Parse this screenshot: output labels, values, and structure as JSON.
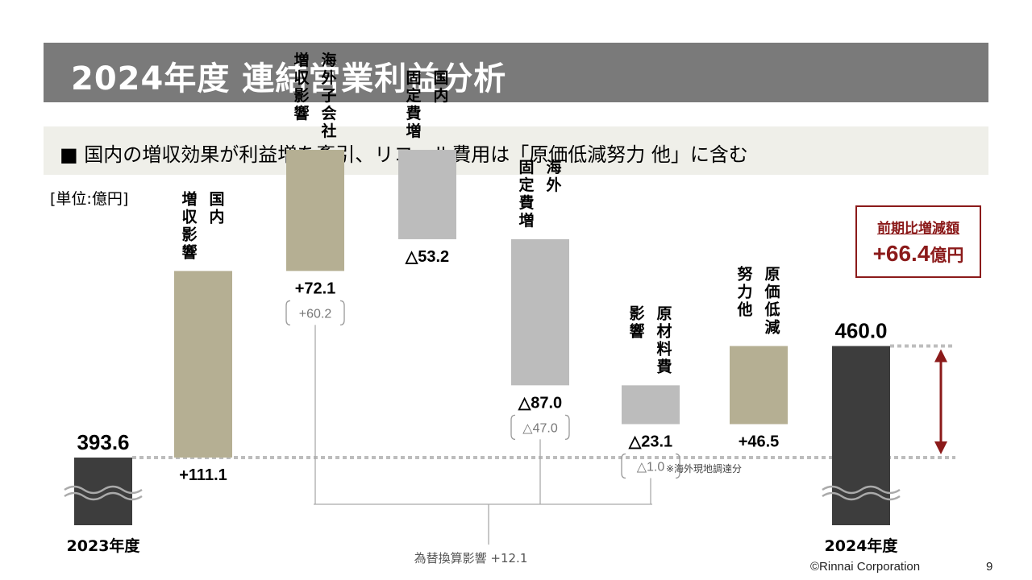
{
  "title": "2024年度 連結営業利益分析",
  "subtitle": "■ 国内の増収効果が利益増を牽引、リコール費用は「原価低減努力 他」に含む",
  "unit_label": "[単位:億円]",
  "callout": {
    "title": "前期比増減額",
    "value": "+66.4",
    "unit": "億円"
  },
  "footer": {
    "copyright": "©Rinnai Corporation",
    "page": "9"
  },
  "colors": {
    "total": "#3d3d3d",
    "positive": "#b5af93",
    "negative": "#bcbcbc",
    "accent": "#8b1a1a",
    "dotted": "#bdbdbd"
  },
  "chart_data": {
    "type": "waterfall",
    "start": {
      "label": "2023年度",
      "value": 393.6,
      "value_label": "393.6"
    },
    "end": {
      "label": "2024年度",
      "value": 460.0,
      "value_label": "460.0"
    },
    "steps": [
      {
        "name_lines": [
          "国内",
          "増収影響"
        ],
        "value": 111.1,
        "value_label": "+111.1",
        "kind": "positive"
      },
      {
        "name_lines": [
          "海外子会社",
          "増収影響"
        ],
        "value": 72.1,
        "value_label": "+72.1",
        "sub_label": "+60.2",
        "kind": "positive"
      },
      {
        "name_lines": [
          "国内",
          "固定費増"
        ],
        "value": -53.2,
        "value_label": "△53.2",
        "kind": "negative"
      },
      {
        "name_lines": [
          "海外",
          "固定費増"
        ],
        "value": -87.0,
        "value_label": "△87.0",
        "sub_label": "△47.0",
        "kind": "negative"
      },
      {
        "name_lines": [
          "原材料費",
          "影響"
        ],
        "value": -23.1,
        "value_label": "△23.1",
        "sub_label": "△1.0",
        "kind": "negative"
      },
      {
        "name_lines": [
          "原価低減",
          "努力他"
        ],
        "value": 46.5,
        "value_label": "+46.5",
        "kind": "positive"
      }
    ],
    "note": "※海外現地調達分",
    "fx_label": "為替換算影響 +12.1"
  }
}
